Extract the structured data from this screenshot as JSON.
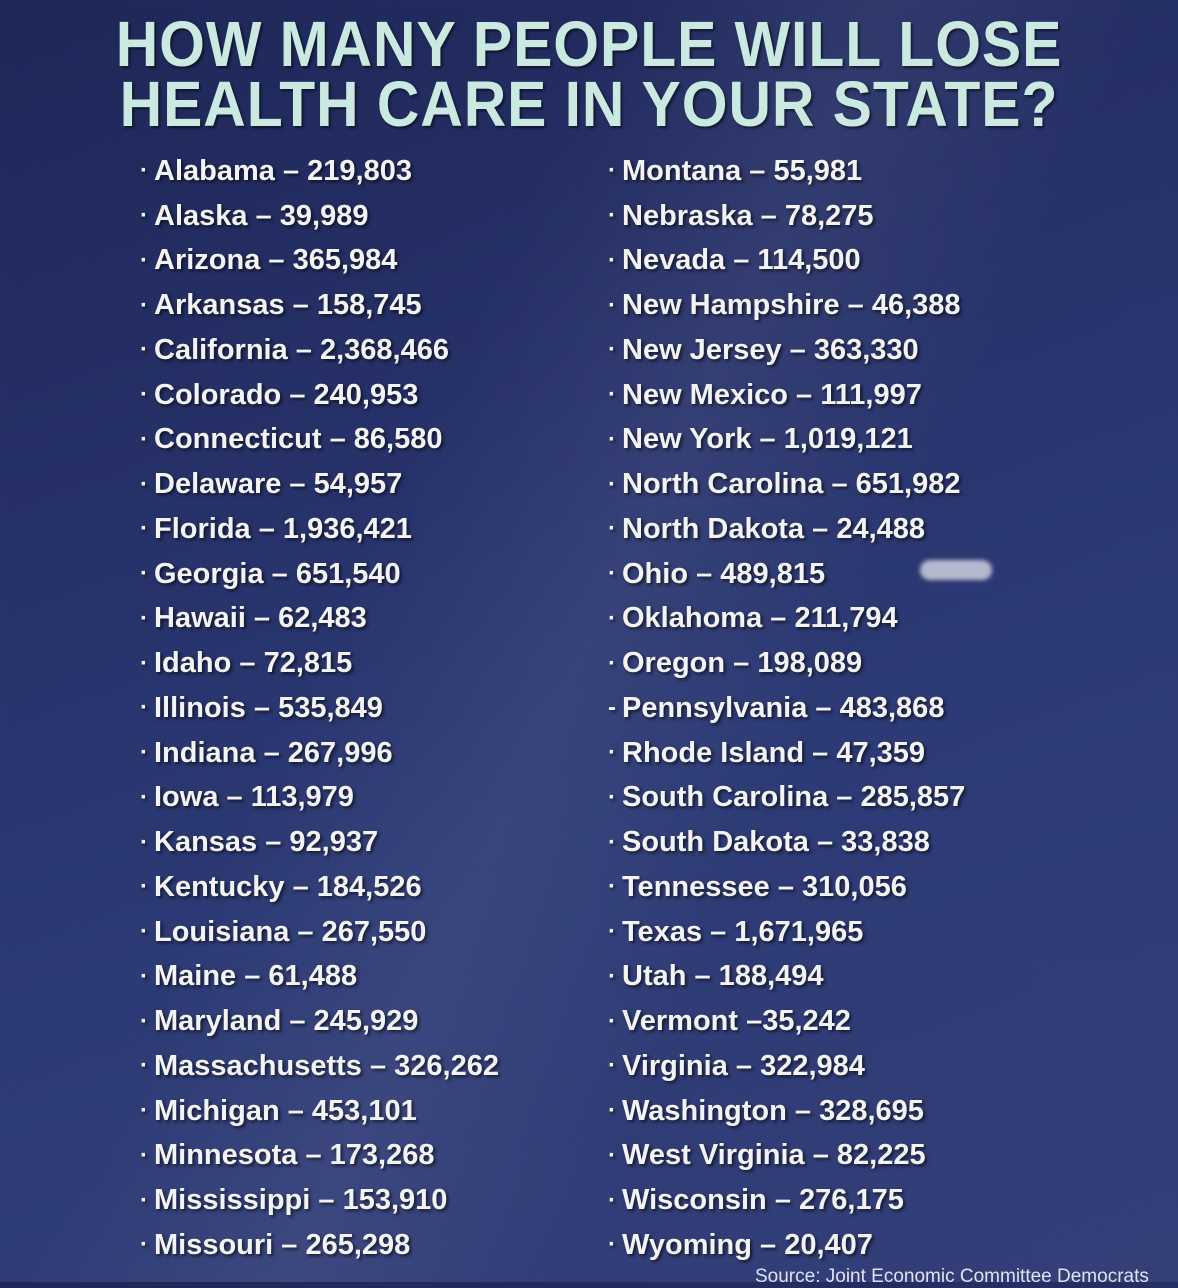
{
  "title": {
    "line1": "HOW MANY PEOPLE WILL LOSE",
    "line2": "HEALTH CARE IN YOUR STATE?"
  },
  "left_column": [
    {
      "bullet": "·",
      "text": "Alabama – 219,803"
    },
    {
      "bullet": "·",
      "text": "Alaska – 39,989"
    },
    {
      "bullet": "·",
      "text": "Arizona – 365,984"
    },
    {
      "bullet": "·",
      "text": "Arkansas – 158,745"
    },
    {
      "bullet": "·",
      "text": "California – 2,368,466"
    },
    {
      "bullet": "·",
      "text": "Colorado – 240,953"
    },
    {
      "bullet": "·",
      "text": "Connecticut – 86,580"
    },
    {
      "bullet": "·",
      "text": "Delaware – 54,957"
    },
    {
      "bullet": "·",
      "text": "Florida – 1,936,421"
    },
    {
      "bullet": "·",
      "text": "Georgia – 651,540"
    },
    {
      "bullet": "·",
      "text": "Hawaii – 62,483"
    },
    {
      "bullet": "·",
      "text": "Idaho – 72,815"
    },
    {
      "bullet": "·",
      "text": "Illinois – 535,849"
    },
    {
      "bullet": "·",
      "text": "Indiana – 267,996"
    },
    {
      "bullet": "·",
      "text": "Iowa – 113,979"
    },
    {
      "bullet": "·",
      "text": "Kansas – 92,937"
    },
    {
      "bullet": "·",
      "text": "Kentucky – 184,526"
    },
    {
      "bullet": "·",
      "text": "Louisiana – 267,550"
    },
    {
      "bullet": "·",
      "text": "Maine – 61,488"
    },
    {
      "bullet": "·",
      "text": "Maryland – 245,929"
    },
    {
      "bullet": "·",
      "text": "Massachusetts – 326,262"
    },
    {
      "bullet": "·",
      "text": "Michigan – 453,101"
    },
    {
      "bullet": "·",
      "text": "Minnesota – 173,268"
    },
    {
      "bullet": "·",
      "text": "Mississippi – 153,910"
    },
    {
      "bullet": "·",
      "text": "Missouri – 265,298"
    }
  ],
  "right_column": [
    {
      "bullet": "·",
      "text": "Montana – 55,981"
    },
    {
      "bullet": "·",
      "text": "Nebraska – 78,275"
    },
    {
      "bullet": "·",
      "text": "Nevada – 114,500"
    },
    {
      "bullet": "·",
      "text": "New Hampshire – 46,388"
    },
    {
      "bullet": "·",
      "text": "New Jersey – 363,330"
    },
    {
      "bullet": "·",
      "text": "New Mexico – 111,997"
    },
    {
      "bullet": "·",
      "text": "New York – 1,019,121"
    },
    {
      "bullet": "·",
      "text": "North Carolina – 651,982"
    },
    {
      "bullet": "·",
      "text": "North Dakota – 24,488"
    },
    {
      "bullet": "·",
      "text": "Ohio – 489,815"
    },
    {
      "bullet": "·",
      "text": "Oklahoma – 211,794"
    },
    {
      "bullet": "·",
      "text": "Oregon – 198,089"
    },
    {
      "bullet": "-",
      "text": "Pennsylvania – 483,868"
    },
    {
      "bullet": "·",
      "text": "Rhode Island – 47,359"
    },
    {
      "bullet": "·",
      "text": "South Carolina – 285,857"
    },
    {
      "bullet": "·",
      "text": "South Dakota – 33,838"
    },
    {
      "bullet": "·",
      "text": "Tennessee – 310,056"
    },
    {
      "bullet": "·",
      "text": "Texas – 1,671,965"
    },
    {
      "bullet": "·",
      "text": "Utah – 188,494"
    },
    {
      "bullet": "·",
      "text": "Vermont –35,242"
    },
    {
      "bullet": "·",
      "text": "Virginia – 322,984"
    },
    {
      "bullet": "·",
      "text": "Washington – 328,695"
    },
    {
      "bullet": "·",
      "text": "West Virginia – 82,225"
    },
    {
      "bullet": "·",
      "text": "Wisconsin – 276,175"
    },
    {
      "bullet": "·",
      "text": "Wyoming – 20,407"
    }
  ],
  "source": "Source: Joint Economic Committee Democrats",
  "colors": {
    "title": "#c9e9e1",
    "text": "#f3f3f3",
    "background_top": "#1e2757",
    "background_bottom": "#343f78"
  }
}
